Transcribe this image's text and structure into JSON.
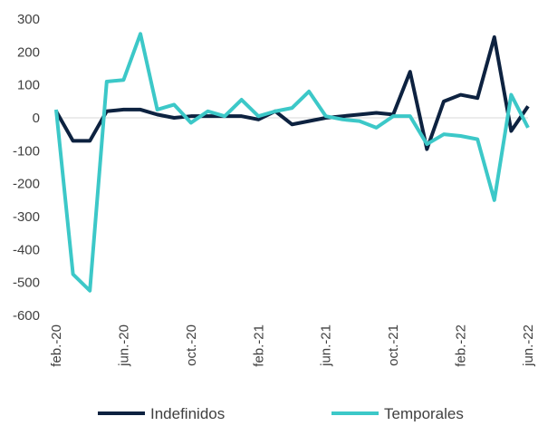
{
  "chart_data": {
    "type": "line",
    "categories": [
      "feb.-20",
      null,
      null,
      null,
      "jun.-20",
      null,
      null,
      null,
      "oct.-20",
      null,
      null,
      null,
      "feb.-21",
      null,
      null,
      null,
      "jun.-21",
      null,
      null,
      null,
      "oct.-21",
      null,
      null,
      null,
      "feb.-22",
      null,
      null,
      null,
      "jun.-22"
    ],
    "series": [
      {
        "name": "Indefinidos",
        "color": "#0d2240",
        "values": [
          20,
          -70,
          -70,
          20,
          25,
          25,
          10,
          0,
          5,
          5,
          5,
          5,
          -5,
          20,
          -20,
          -10,
          0,
          5,
          10,
          15,
          10,
          140,
          -95,
          50,
          70,
          60,
          245,
          -40,
          35
        ]
      },
      {
        "name": "Temporales",
        "color": "#3cc8c8",
        "values": [
          25,
          -475,
          -525,
          110,
          115,
          255,
          25,
          40,
          -15,
          20,
          5,
          55,
          5,
          20,
          30,
          80,
          5,
          -5,
          -10,
          -30,
          5,
          5,
          -80,
          -50,
          -55,
          -65,
          -250,
          70,
          -30
        ]
      }
    ],
    "ylim": [
      -600,
      300
    ],
    "yticks": [
      -600,
      -500,
      -400,
      -300,
      -200,
      -100,
      0,
      100,
      200,
      300
    ],
    "legend": "bottom"
  }
}
